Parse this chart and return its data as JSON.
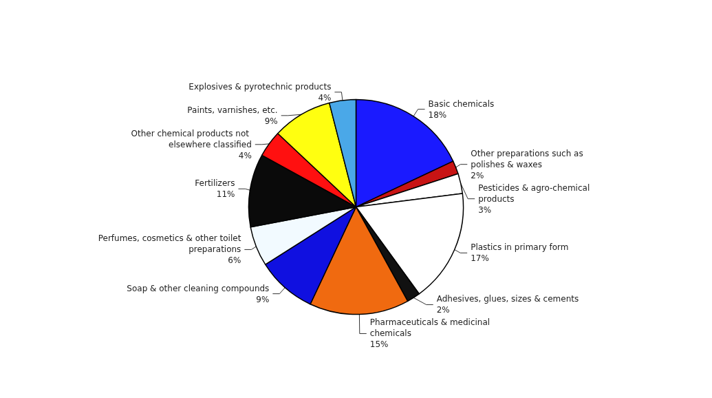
{
  "chart_data": {
    "type": "pie",
    "categories": [
      "Basic chemicals",
      "Other preparations such as polishes & waxes",
      "Pesticides & agro-chemical products",
      "Plastics in primary form",
      "Adhesives, glues, sizes & cements",
      "Pharmaceuticals & medicinal chemicals",
      "Soap & other cleaning compounds",
      "Perfumes, cosmetics & other toilet preparations",
      "Fertilizers",
      "Other chemical products not elsewhere classified",
      "Paints, varnishes, etc.",
      "Explosives & pyrotechnic products"
    ],
    "values": [
      18,
      2,
      3,
      17,
      2,
      15,
      9,
      6,
      11,
      4,
      9,
      4
    ],
    "value_labels": [
      "18%",
      "2%",
      "3%",
      "17%",
      "2%",
      "15%",
      "9%",
      "6%",
      "11%",
      "4%",
      "9%",
      "4%"
    ],
    "colors": [
      "#1a1aff",
      "#c81414",
      "#ffffff",
      "#ffffff",
      "#111111",
      "#f06a10",
      "#1010e0",
      "#f2faff",
      "#0a0a0a",
      "#ff1010",
      "#ffff10",
      "#4aa8e8"
    ],
    "legend": false
  }
}
